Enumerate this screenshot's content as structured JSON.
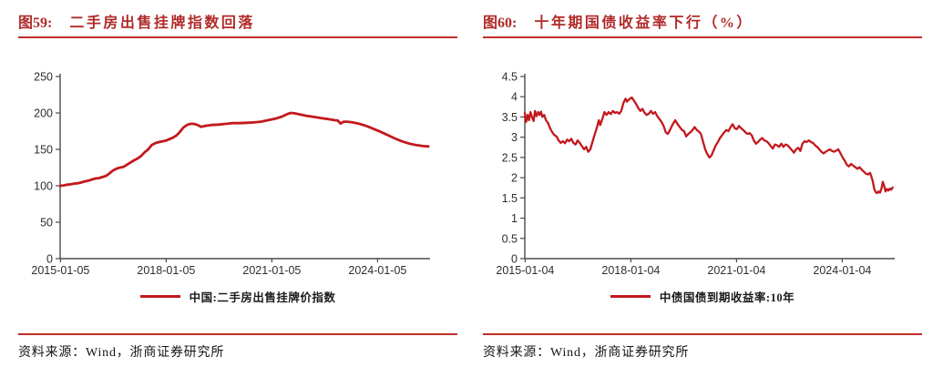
{
  "colors": {
    "title": "#b02a28",
    "rule": "#c03028",
    "axis": "#4a4a4a",
    "text": "#151515",
    "line_red": "#c2191d"
  },
  "figures": [
    {
      "label": "图59:",
      "title": "二手房出售挂牌指数回落",
      "legend": "中国:二手房出售挂牌价指数",
      "source": "资料来源：Wind，浙商证券研究所"
    },
    {
      "label": "图60:",
      "title": "十年期国债收益率下行（%）",
      "legend": "中债国债到期收益率:10年",
      "source": "资料来源：Wind，浙商证券研究所"
    }
  ],
  "chart_data": [
    {
      "type": "line",
      "title": "二手房出售挂牌指数回落",
      "series_name": "中国:二手房出售挂牌价指数",
      "xlabel": "",
      "ylabel": "",
      "grid": false,
      "legend_position": "bottom",
      "line_color": "#c2191d",
      "line_width": 2.8,
      "xlim": [
        2015.0,
        2025.5
      ],
      "ylim": [
        0,
        250
      ],
      "yticks": [
        0,
        50,
        100,
        150,
        200,
        250
      ],
      "ytick_labels": [
        "0",
        "50",
        "100",
        "150",
        "200",
        "250"
      ],
      "xticks": [
        2015.01,
        2018.01,
        2021.01,
        2024.01
      ],
      "xtick_labels": [
        "2015-01-05",
        "2018-01-05",
        "2021-01-05",
        "2024-01-05"
      ],
      "points": [
        [
          2015.0,
          100
        ],
        [
          2015.1,
          100.5
        ],
        [
          2015.2,
          101.5
        ],
        [
          2015.3,
          102
        ],
        [
          2015.4,
          103
        ],
        [
          2015.5,
          103.5
        ],
        [
          2015.6,
          104.5
        ],
        [
          2015.7,
          106
        ],
        [
          2015.8,
          107
        ],
        [
          2015.9,
          108.5
        ],
        [
          2016.0,
          110
        ],
        [
          2016.1,
          110.5
        ],
        [
          2016.2,
          112
        ],
        [
          2016.3,
          113.5
        ],
        [
          2016.4,
          117
        ],
        [
          2016.5,
          121
        ],
        [
          2016.6,
          123.5
        ],
        [
          2016.7,
          125
        ],
        [
          2016.8,
          126
        ],
        [
          2016.9,
          129
        ],
        [
          2017.0,
          132
        ],
        [
          2017.1,
          135
        ],
        [
          2017.2,
          137.5
        ],
        [
          2017.3,
          141
        ],
        [
          2017.4,
          146
        ],
        [
          2017.5,
          150
        ],
        [
          2017.6,
          156
        ],
        [
          2017.7,
          158.5
        ],
        [
          2017.8,
          160
        ],
        [
          2017.9,
          161
        ],
        [
          2018.0,
          162
        ],
        [
          2018.1,
          164
        ],
        [
          2018.2,
          166
        ],
        [
          2018.3,
          169
        ],
        [
          2018.4,
          174
        ],
        [
          2018.5,
          180
        ],
        [
          2018.6,
          183.5
        ],
        [
          2018.7,
          185
        ],
        [
          2018.8,
          185
        ],
        [
          2018.9,
          183.5
        ],
        [
          2019.0,
          181
        ],
        [
          2019.15,
          182.5
        ],
        [
          2019.3,
          183.5
        ],
        [
          2019.5,
          184
        ],
        [
          2019.7,
          185
        ],
        [
          2019.9,
          186
        ],
        [
          2020.1,
          186
        ],
        [
          2020.3,
          186.5
        ],
        [
          2020.5,
          187
        ],
        [
          2020.7,
          188
        ],
        [
          2020.9,
          190
        ],
        [
          2021.1,
          192
        ],
        [
          2021.3,
          195
        ],
        [
          2021.45,
          198.5
        ],
        [
          2021.55,
          200
        ],
        [
          2021.65,
          199.5
        ],
        [
          2021.8,
          198
        ],
        [
          2022.0,
          196
        ],
        [
          2022.2,
          194.5
        ],
        [
          2022.4,
          193
        ],
        [
          2022.6,
          191.5
        ],
        [
          2022.8,
          190
        ],
        [
          2022.88,
          189.5
        ],
        [
          2022.96,
          185.5
        ],
        [
          2023.05,
          188
        ],
        [
          2023.15,
          188
        ],
        [
          2023.3,
          187
        ],
        [
          2023.5,
          185
        ],
        [
          2023.7,
          182
        ],
        [
          2023.9,
          178
        ],
        [
          2024.1,
          174
        ],
        [
          2024.3,
          169.5
        ],
        [
          2024.5,
          165
        ],
        [
          2024.7,
          161
        ],
        [
          2024.9,
          158
        ],
        [
          2025.1,
          156
        ],
        [
          2025.3,
          154.5
        ],
        [
          2025.45,
          154
        ]
      ]
    },
    {
      "type": "line",
      "title": "十年期国债收益率下行（%）",
      "series_name": "中债国债到期收益率:10年",
      "xlabel": "",
      "ylabel": "%",
      "grid": false,
      "legend_position": "bottom",
      "line_color": "#c2191d",
      "line_width": 2.3,
      "xlim": [
        2015.0,
        2025.5
      ],
      "ylim": [
        0,
        4.5
      ],
      "yticks": [
        0,
        0.5,
        1,
        1.5,
        2,
        2.5,
        3,
        3.5,
        4,
        4.5
      ],
      "ytick_labels": [
        "0",
        "0.5",
        "1",
        "1.5",
        "2",
        "2.5",
        "3",
        "3.5",
        "4",
        "4.5"
      ],
      "xticks": [
        2015.01,
        2018.01,
        2021.01,
        2024.01
      ],
      "xtick_labels": [
        "2015-01-04",
        "2018-01-04",
        "2021-01-04",
        "2024-01-04"
      ],
      "points": [
        [
          2015.0,
          3.6
        ],
        [
          2015.04,
          3.38
        ],
        [
          2015.08,
          3.55
        ],
        [
          2015.12,
          3.42
        ],
        [
          2015.16,
          3.62
        ],
        [
          2015.21,
          3.48
        ],
        [
          2015.25,
          3.4
        ],
        [
          2015.29,
          3.65
        ],
        [
          2015.33,
          3.52
        ],
        [
          2015.38,
          3.62
        ],
        [
          2015.42,
          3.55
        ],
        [
          2015.46,
          3.63
        ],
        [
          2015.5,
          3.5
        ],
        [
          2015.55,
          3.55
        ],
        [
          2015.6,
          3.42
        ],
        [
          2015.66,
          3.35
        ],
        [
          2015.72,
          3.22
        ],
        [
          2015.78,
          3.12
        ],
        [
          2015.84,
          3.05
        ],
        [
          2015.9,
          3.02
        ],
        [
          2015.96,
          2.92
        ],
        [
          2016.02,
          2.86
        ],
        [
          2016.08,
          2.9
        ],
        [
          2016.14,
          2.85
        ],
        [
          2016.2,
          2.94
        ],
        [
          2016.26,
          2.9
        ],
        [
          2016.32,
          2.96
        ],
        [
          2016.38,
          2.86
        ],
        [
          2016.44,
          2.82
        ],
        [
          2016.5,
          2.92
        ],
        [
          2016.56,
          2.86
        ],
        [
          2016.62,
          2.78
        ],
        [
          2016.68,
          2.7
        ],
        [
          2016.74,
          2.76
        ],
        [
          2016.8,
          2.64
        ],
        [
          2016.86,
          2.7
        ],
        [
          2016.92,
          2.88
        ],
        [
          2016.98,
          3.06
        ],
        [
          2017.04,
          3.22
        ],
        [
          2017.1,
          3.42
        ],
        [
          2017.14,
          3.3
        ],
        [
          2017.2,
          3.45
        ],
        [
          2017.26,
          3.62
        ],
        [
          2017.32,
          3.55
        ],
        [
          2017.38,
          3.62
        ],
        [
          2017.44,
          3.57
        ],
        [
          2017.5,
          3.65
        ],
        [
          2017.56,
          3.6
        ],
        [
          2017.62,
          3.62
        ],
        [
          2017.68,
          3.58
        ],
        [
          2017.74,
          3.65
        ],
        [
          2017.8,
          3.85
        ],
        [
          2017.86,
          3.95
        ],
        [
          2017.9,
          3.88
        ],
        [
          2017.94,
          3.92
        ],
        [
          2018.0,
          3.96
        ],
        [
          2018.04,
          3.98
        ],
        [
          2018.1,
          3.9
        ],
        [
          2018.16,
          3.82
        ],
        [
          2018.22,
          3.72
        ],
        [
          2018.28,
          3.65
        ],
        [
          2018.34,
          3.7
        ],
        [
          2018.4,
          3.6
        ],
        [
          2018.46,
          3.55
        ],
        [
          2018.52,
          3.58
        ],
        [
          2018.58,
          3.65
        ],
        [
          2018.64,
          3.58
        ],
        [
          2018.7,
          3.62
        ],
        [
          2018.76,
          3.52
        ],
        [
          2018.82,
          3.45
        ],
        [
          2018.88,
          3.38
        ],
        [
          2018.94,
          3.28
        ],
        [
          2019.0,
          3.12
        ],
        [
          2019.06,
          3.08
        ],
        [
          2019.12,
          3.18
        ],
        [
          2019.2,
          3.32
        ],
        [
          2019.27,
          3.42
        ],
        [
          2019.34,
          3.32
        ],
        [
          2019.4,
          3.25
        ],
        [
          2019.46,
          3.18
        ],
        [
          2019.52,
          3.15
        ],
        [
          2019.58,
          3.02
        ],
        [
          2019.64,
          3.08
        ],
        [
          2019.7,
          3.12
        ],
        [
          2019.76,
          3.18
        ],
        [
          2019.82,
          3.25
        ],
        [
          2019.88,
          3.18
        ],
        [
          2019.94,
          3.14
        ],
        [
          2020.0,
          3.08
        ],
        [
          2020.06,
          2.88
        ],
        [
          2020.12,
          2.7
        ],
        [
          2020.18,
          2.58
        ],
        [
          2020.24,
          2.5
        ],
        [
          2020.3,
          2.55
        ],
        [
          2020.36,
          2.68
        ],
        [
          2020.42,
          2.8
        ],
        [
          2020.48,
          2.88
        ],
        [
          2020.54,
          2.98
        ],
        [
          2020.6,
          3.05
        ],
        [
          2020.66,
          3.12
        ],
        [
          2020.72,
          3.18
        ],
        [
          2020.78,
          3.15
        ],
        [
          2020.84,
          3.25
        ],
        [
          2020.9,
          3.32
        ],
        [
          2020.96,
          3.22
        ],
        [
          2021.02,
          3.2
        ],
        [
          2021.08,
          3.28
        ],
        [
          2021.14,
          3.22
        ],
        [
          2021.2,
          3.18
        ],
        [
          2021.26,
          3.12
        ],
        [
          2021.32,
          3.08
        ],
        [
          2021.38,
          3.1
        ],
        [
          2021.44,
          3.05
        ],
        [
          2021.5,
          2.92
        ],
        [
          2021.56,
          2.84
        ],
        [
          2021.62,
          2.88
        ],
        [
          2021.68,
          2.94
        ],
        [
          2021.74,
          2.98
        ],
        [
          2021.8,
          2.92
        ],
        [
          2021.86,
          2.9
        ],
        [
          2021.92,
          2.85
        ],
        [
          2021.98,
          2.78
        ],
        [
          2022.04,
          2.72
        ],
        [
          2022.1,
          2.82
        ],
        [
          2022.16,
          2.8
        ],
        [
          2022.22,
          2.76
        ],
        [
          2022.28,
          2.84
        ],
        [
          2022.34,
          2.76
        ],
        [
          2022.4,
          2.82
        ],
        [
          2022.46,
          2.8
        ],
        [
          2022.52,
          2.74
        ],
        [
          2022.58,
          2.68
        ],
        [
          2022.64,
          2.62
        ],
        [
          2022.7,
          2.7
        ],
        [
          2022.76,
          2.74
        ],
        [
          2022.82,
          2.66
        ],
        [
          2022.88,
          2.84
        ],
        [
          2022.94,
          2.9
        ],
        [
          2023.0,
          2.88
        ],
        [
          2023.06,
          2.92
        ],
        [
          2023.12,
          2.88
        ],
        [
          2023.18,
          2.86
        ],
        [
          2023.24,
          2.8
        ],
        [
          2023.3,
          2.76
        ],
        [
          2023.36,
          2.7
        ],
        [
          2023.42,
          2.64
        ],
        [
          2023.48,
          2.6
        ],
        [
          2023.54,
          2.64
        ],
        [
          2023.6,
          2.67
        ],
        [
          2023.66,
          2.7
        ],
        [
          2023.72,
          2.66
        ],
        [
          2023.78,
          2.64
        ],
        [
          2023.84,
          2.67
        ],
        [
          2023.9,
          2.7
        ],
        [
          2023.96,
          2.6
        ],
        [
          2024.02,
          2.5
        ],
        [
          2024.08,
          2.42
        ],
        [
          2024.14,
          2.32
        ],
        [
          2024.2,
          2.28
        ],
        [
          2024.26,
          2.34
        ],
        [
          2024.32,
          2.3
        ],
        [
          2024.38,
          2.26
        ],
        [
          2024.44,
          2.22
        ],
        [
          2024.5,
          2.26
        ],
        [
          2024.56,
          2.2
        ],
        [
          2024.62,
          2.15
        ],
        [
          2024.68,
          2.1
        ],
        [
          2024.74,
          2.08
        ],
        [
          2024.8,
          2.12
        ],
        [
          2024.84,
          2.02
        ],
        [
          2024.88,
          1.9
        ],
        [
          2024.92,
          1.72
        ],
        [
          2024.96,
          1.64
        ],
        [
          2025.0,
          1.62
        ],
        [
          2025.04,
          1.66
        ],
        [
          2025.08,
          1.63
        ],
        [
          2025.12,
          1.72
        ],
        [
          2025.16,
          1.9
        ],
        [
          2025.2,
          1.8
        ],
        [
          2025.24,
          1.66
        ],
        [
          2025.28,
          1.72
        ],
        [
          2025.32,
          1.68
        ],
        [
          2025.36,
          1.73
        ],
        [
          2025.4,
          1.7
        ],
        [
          2025.44,
          1.76
        ]
      ]
    }
  ]
}
